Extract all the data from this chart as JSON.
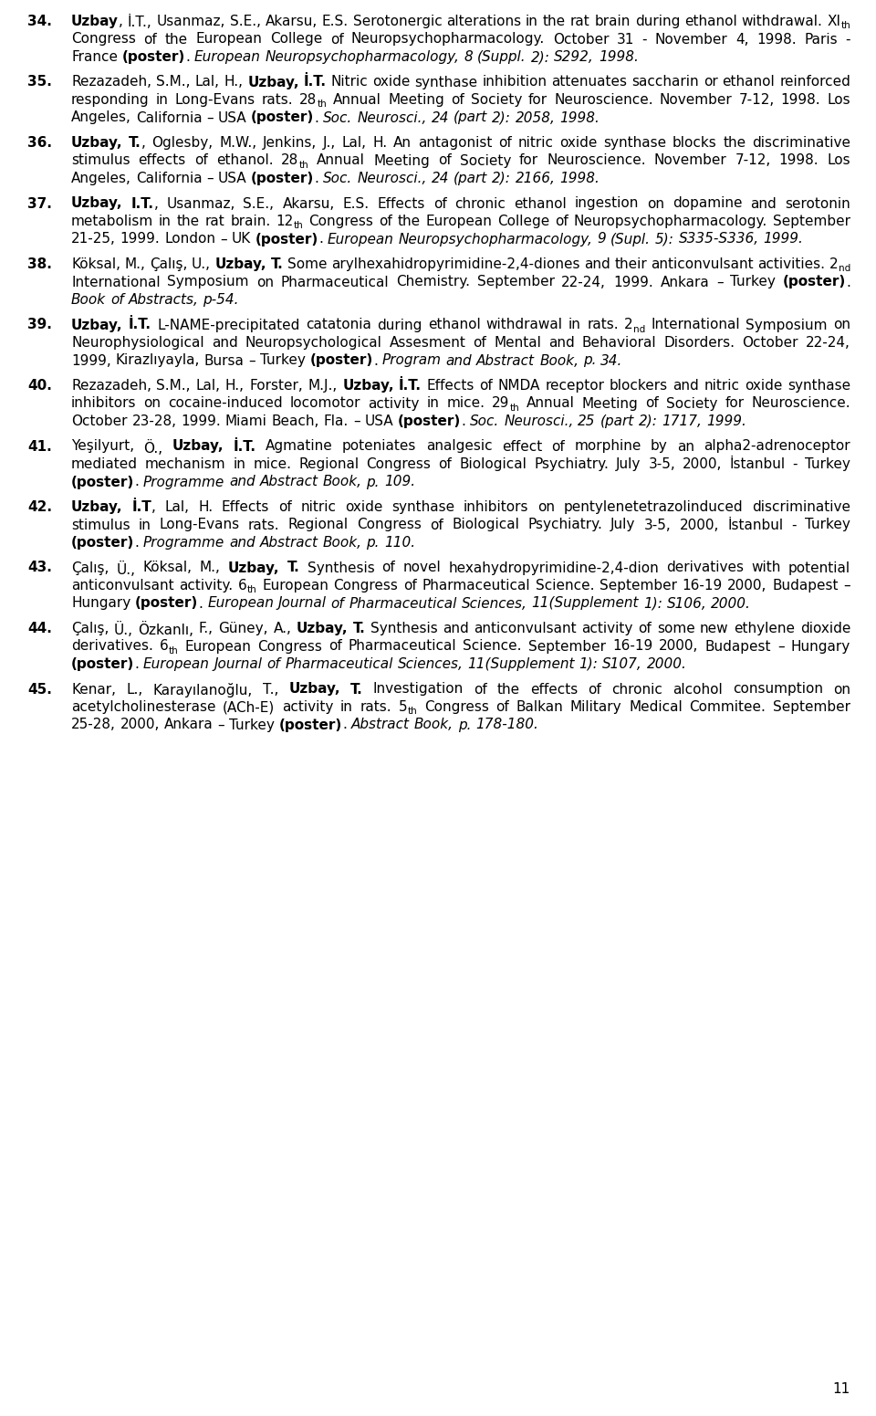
{
  "page_number": "11",
  "background_color": "#ffffff",
  "text_color": "#000000",
  "entries": [
    {
      "number": "34.",
      "parts": [
        {
          "t": "Uzbay",
          "b": 1,
          "i": 0,
          "s": 0
        },
        {
          "t": ", İ.T., Usanmaz, S.E., Akarsu, E.S. Serotonergic alterations in the rat brain during ethanol withdrawal. XI",
          "b": 0,
          "i": 0,
          "s": 0
        },
        {
          "t": "th",
          "b": 0,
          "i": 0,
          "s": 1
        },
        {
          "t": " Congress of the European College of Neuropsychopharmacology. October 31 - November 4, 1998. Paris - France ",
          "b": 0,
          "i": 0,
          "s": 0
        },
        {
          "t": "(poster)",
          "b": 1,
          "i": 0,
          "s": 0
        },
        {
          "t": ". ",
          "b": 0,
          "i": 0,
          "s": 0
        },
        {
          "t": "European Neuropsychopharmacology, 8 (Suppl. 2): S292, 1998.",
          "b": 0,
          "i": 1,
          "s": 0
        }
      ]
    },
    {
      "number": "35.",
      "parts": [
        {
          "t": "Rezazadeh, S.M., Lal, H., ",
          "b": 0,
          "i": 0,
          "s": 0
        },
        {
          "t": "Uzbay, İ.T.",
          "b": 1,
          "i": 0,
          "s": 0
        },
        {
          "t": " Nitric oxide synthase inhibition attenuates saccharin or ethanol reinforced responding in Long-Evans rats. 28",
          "b": 0,
          "i": 0,
          "s": 0
        },
        {
          "t": "th",
          "b": 0,
          "i": 0,
          "s": 1
        },
        {
          "t": " Annual Meeting of Society for Neuroscience. November 7-12, 1998. Los Angeles, California – USA ",
          "b": 0,
          "i": 0,
          "s": 0
        },
        {
          "t": "(poster)",
          "b": 1,
          "i": 0,
          "s": 0
        },
        {
          "t": ". ",
          "b": 0,
          "i": 0,
          "s": 0
        },
        {
          "t": "Soc. Neurosci., 24 (part 2): 2058, 1998.",
          "b": 0,
          "i": 1,
          "s": 0
        }
      ]
    },
    {
      "number": "36.",
      "parts": [
        {
          "t": "Uzbay, T.",
          "b": 1,
          "i": 0,
          "s": 0
        },
        {
          "t": ", Oglesby, M.W., Jenkins, J., Lal, H. An antagonist of nitric oxide synthase blocks the discriminative stimulus effects of ethanol. 28",
          "b": 0,
          "i": 0,
          "s": 0
        },
        {
          "t": "th",
          "b": 0,
          "i": 0,
          "s": 1
        },
        {
          "t": " Annual Meeting of Society for Neuroscience. November 7-12, 1998. Los Angeles, California – USA ",
          "b": 0,
          "i": 0,
          "s": 0
        },
        {
          "t": "(poster)",
          "b": 1,
          "i": 0,
          "s": 0
        },
        {
          "t": ". ",
          "b": 0,
          "i": 0,
          "s": 0
        },
        {
          "t": "Soc. Neurosci., 24 (part 2): 2166, 1998.",
          "b": 0,
          "i": 1,
          "s": 0
        }
      ]
    },
    {
      "number": "37.",
      "parts": [
        {
          "t": "Uzbay, I.T.",
          "b": 1,
          "i": 0,
          "s": 0
        },
        {
          "t": ", Usanmaz, S.E., Akarsu, E.S. Effects of chronic ethanol ingestion on dopamine and serotonin metabolism in the rat brain. 12",
          "b": 0,
          "i": 0,
          "s": 0
        },
        {
          "t": "th",
          "b": 0,
          "i": 0,
          "s": 1
        },
        {
          "t": " Congress of the European College of Neuropsychopharmacology. September 21-25, 1999. London – UK ",
          "b": 0,
          "i": 0,
          "s": 0
        },
        {
          "t": "(poster)",
          "b": 1,
          "i": 0,
          "s": 0
        },
        {
          "t": ". ",
          "b": 0,
          "i": 0,
          "s": 0
        },
        {
          "t": "European Neuropsychopharmacology, 9 (Supl. 5): S335-S336, 1999.",
          "b": 0,
          "i": 1,
          "s": 0
        }
      ]
    },
    {
      "number": "38.",
      "parts": [
        {
          "t": "Köksal, M., Çalış, U., ",
          "b": 0,
          "i": 0,
          "s": 0
        },
        {
          "t": "Uzbay, T.",
          "b": 1,
          "i": 0,
          "s": 0
        },
        {
          "t": " Some arylhexahidropyrimidine-2,4-diones and their anticonvulsant activities. 2",
          "b": 0,
          "i": 0,
          "s": 0
        },
        {
          "t": "nd",
          "b": 0,
          "i": 0,
          "s": 1
        },
        {
          "t": " International Symposium on Pharmaceutical Chemistry. September 22-24, 1999. Ankara – Turkey ",
          "b": 0,
          "i": 0,
          "s": 0
        },
        {
          "t": "(poster)",
          "b": 1,
          "i": 0,
          "s": 0
        },
        {
          "t": ". ",
          "b": 0,
          "i": 0,
          "s": 0
        },
        {
          "t": "Book of Abstracts, p-54.",
          "b": 0,
          "i": 1,
          "s": 0
        }
      ]
    },
    {
      "number": "39.",
      "parts": [
        {
          "t": "Uzbay, İ.T.",
          "b": 1,
          "i": 0,
          "s": 0
        },
        {
          "t": " L-NAME-precipitated catatonia during ethanol withdrawal in rats. 2",
          "b": 0,
          "i": 0,
          "s": 0
        },
        {
          "t": "nd",
          "b": 0,
          "i": 0,
          "s": 1
        },
        {
          "t": " International Symposium on Neurophysiological and Neuropsychological Assesment of Mental and Behavioral Disorders. October 22-24, 1999, Kirazlıyayla, Bursa – Turkey ",
          "b": 0,
          "i": 0,
          "s": 0
        },
        {
          "t": "(poster)",
          "b": 1,
          "i": 0,
          "s": 0
        },
        {
          "t": ". ",
          "b": 0,
          "i": 0,
          "s": 0
        },
        {
          "t": "Program and Abstract Book, p. 34.",
          "b": 0,
          "i": 1,
          "s": 0
        }
      ]
    },
    {
      "number": "40.",
      "parts": [
        {
          "t": "Rezazadeh, S.M., Lal, H., Forster, M.J., ",
          "b": 0,
          "i": 0,
          "s": 0
        },
        {
          "t": "Uzbay, İ.T.",
          "b": 1,
          "i": 0,
          "s": 0
        },
        {
          "t": " Effects of NMDA receptor blockers and nitric oxide synthase inhibitors on cocaine-induced locomotor activity in mice. 29",
          "b": 0,
          "i": 0,
          "s": 0
        },
        {
          "t": "th",
          "b": 0,
          "i": 0,
          "s": 1
        },
        {
          "t": " Annual Meeting of Society for Neuroscience. October 23-28, 1999. Miami Beach, Fla. – USA ",
          "b": 0,
          "i": 0,
          "s": 0
        },
        {
          "t": "(poster)",
          "b": 1,
          "i": 0,
          "s": 0
        },
        {
          "t": ". ",
          "b": 0,
          "i": 0,
          "s": 0
        },
        {
          "t": "Soc. Neurosci., 25 (part 2): 1717, 1999.",
          "b": 0,
          "i": 1,
          "s": 0
        }
      ]
    },
    {
      "number": "41.",
      "parts": [
        {
          "t": "Yeşilyurt, Ö., ",
          "b": 0,
          "i": 0,
          "s": 0
        },
        {
          "t": "Uzbay, İ.T.",
          "b": 1,
          "i": 0,
          "s": 0
        },
        {
          "t": " Agmatine poteniates analgesic effect of morphine by an alpha2-adrenoceptor mediated mechanism in mice. Regional Congress of Biological Psychiatry. July 3-5, 2000, İstanbul - Turkey ",
          "b": 0,
          "i": 0,
          "s": 0
        },
        {
          "t": "(poster)",
          "b": 1,
          "i": 0,
          "s": 0
        },
        {
          "t": ". ",
          "b": 0,
          "i": 0,
          "s": 0
        },
        {
          "t": "Programme and Abstract Book, p. 109.",
          "b": 0,
          "i": 1,
          "s": 0
        }
      ]
    },
    {
      "number": "42.",
      "parts": [
        {
          "t": "Uzbay, İ.T",
          "b": 1,
          "i": 0,
          "s": 0
        },
        {
          "t": ", Lal, H. Effects of nitric oxide synthase inhibitors on pentylenetetrazolinduced discriminative stimulus in Long-Evans rats. Regional Congress of Biological Psychiatry. July 3-5, 2000, İstanbul - Turkey ",
          "b": 0,
          "i": 0,
          "s": 0
        },
        {
          "t": "(poster)",
          "b": 1,
          "i": 0,
          "s": 0
        },
        {
          "t": ". ",
          "b": 0,
          "i": 0,
          "s": 0
        },
        {
          "t": "Programme and Abstract Book, p. 110.",
          "b": 0,
          "i": 1,
          "s": 0
        }
      ]
    },
    {
      "number": "43.",
      "parts": [
        {
          "t": "Çalış, Ü., Köksal, M., ",
          "b": 0,
          "i": 0,
          "s": 0
        },
        {
          "t": "Uzbay, T.",
          "b": 1,
          "i": 0,
          "s": 0
        },
        {
          "t": " Synthesis of novel hexahydropyrimidine-2,4-dion derivatives with potential anticonvulsant activity. 6",
          "b": 0,
          "i": 0,
          "s": 0
        },
        {
          "t": "th",
          "b": 0,
          "i": 0,
          "s": 1
        },
        {
          "t": " European Congress of Pharmaceutical Science. September 16-19 2000, Budapest – Hungary ",
          "b": 0,
          "i": 0,
          "s": 0
        },
        {
          "t": "(poster)",
          "b": 1,
          "i": 0,
          "s": 0
        },
        {
          "t": ". ",
          "b": 0,
          "i": 0,
          "s": 0
        },
        {
          "t": "European Journal of Pharmaceutical Sciences, 11(Supplement 1): S106, 2000.",
          "b": 0,
          "i": 1,
          "s": 0
        }
      ]
    },
    {
      "number": "44.",
      "parts": [
        {
          "t": "Çalış, Ü., Özkanlı, F., Güney, A., ",
          "b": 0,
          "i": 0,
          "s": 0
        },
        {
          "t": "Uzbay, T.",
          "b": 1,
          "i": 0,
          "s": 0
        },
        {
          "t": " Synthesis and anticonvulsant activity of some new ethylene dioxide derivatives. 6",
          "b": 0,
          "i": 0,
          "s": 0
        },
        {
          "t": "th",
          "b": 0,
          "i": 0,
          "s": 1
        },
        {
          "t": " European Congress of Pharmaceutical Science. September 16-19 2000, Budapest – Hungary ",
          "b": 0,
          "i": 0,
          "s": 0
        },
        {
          "t": "(poster)",
          "b": 1,
          "i": 0,
          "s": 0
        },
        {
          "t": ". ",
          "b": 0,
          "i": 0,
          "s": 0
        },
        {
          "t": "European Journal of Pharmaceutical Sciences, 11(Supplement 1): S107, 2000.",
          "b": 0,
          "i": 1,
          "s": 0
        }
      ]
    },
    {
      "number": "45.",
      "parts": [
        {
          "t": "Kenar, L., Karayılanoğlu, T., ",
          "b": 0,
          "i": 0,
          "s": 0
        },
        {
          "t": "Uzbay, T.",
          "b": 1,
          "i": 0,
          "s": 0
        },
        {
          "t": " Investigation of the effects of chronic alcohol consumption on acetylcholinesterase (ACh-E) activity in rats. 5",
          "b": 0,
          "i": 0,
          "s": 0
        },
        {
          "t": "th",
          "b": 0,
          "i": 0,
          "s": 1
        },
        {
          "t": " Congress of Balkan Military Medical Commitee. September 25-28, 2000, Ankara – Turkey ",
          "b": 0,
          "i": 0,
          "s": 0
        },
        {
          "t": "(poster)",
          "b": 1,
          "i": 0,
          "s": 0
        },
        {
          "t": ". ",
          "b": 0,
          "i": 0,
          "s": 0
        },
        {
          "t": "Abstract Book, p. 178-180.",
          "b": 0,
          "i": 1,
          "s": 0
        }
      ]
    }
  ]
}
